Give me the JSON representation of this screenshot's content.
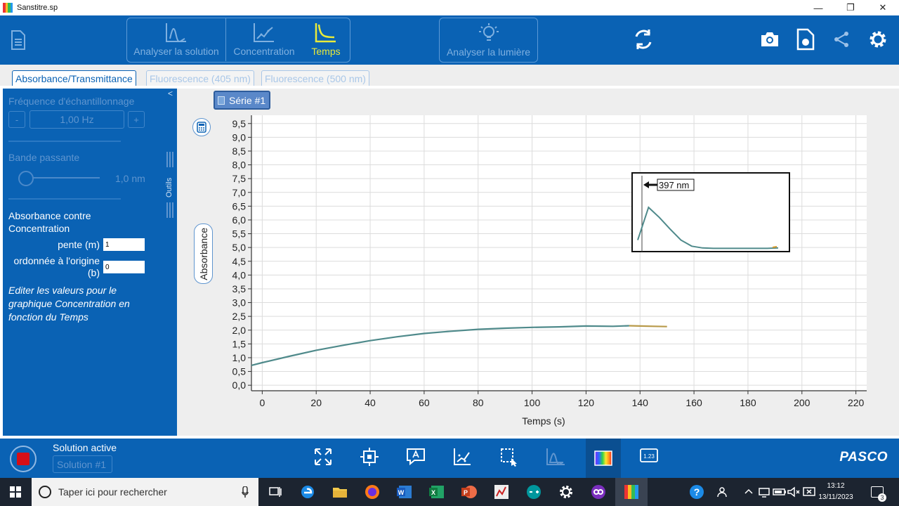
{
  "window": {
    "title": "Sanstitre.sp",
    "minimize": "—",
    "maximize": "❐",
    "close": "✕"
  },
  "toolbar": {
    "modes": [
      {
        "label": "Analyser la solution",
        "icon": "analyze-chart-icon",
        "active": false
      },
      {
        "label": "Concentration",
        "icon": "concentration-chart-icon",
        "active": false
      },
      {
        "label": "Temps",
        "icon": "time-chart-icon",
        "active": true
      }
    ],
    "light_label": "Analyser la lumière",
    "colors": {
      "bg": "#0a62b4",
      "active": "#e8ea3a",
      "faded": "#7fb0e0"
    }
  },
  "tabs": [
    {
      "label": "Absorbance/Transmittance",
      "active": true
    },
    {
      "label": "Fluorescence (405 nm)",
      "active": false
    },
    {
      "label": "Fluorescence (500 nm)",
      "active": false
    }
  ],
  "left_panel": {
    "collapse": "<",
    "sampling_label": "Fréquence d'échantillonnage",
    "minus": "-",
    "plus": "+",
    "sampling_value": "1,00 Hz",
    "bandwidth_label": "Bande passante",
    "bandwidth_value": "1,0 nm",
    "tools_label": "Outils",
    "absorb_title": "Absorbance contre Concentration",
    "slope_label": "pente (m)",
    "slope_value": "1",
    "intercept_label": "ordonnée à l'origine (b)",
    "intercept_value": "0",
    "edit_note": "Editer les valeurs pour le graphique Concentration en fonction du Temps"
  },
  "graph": {
    "series_label": "Série #1",
    "ylabel": "Absorbance",
    "xlabel": "Temps (s)",
    "inset_label": "397 nm"
  },
  "chart_data": {
    "type": "line",
    "xlabel": "Temps (s)",
    "ylabel": "Absorbance",
    "xlim": [
      -4,
      224
    ],
    "ylim": [
      -0.2,
      9.8
    ],
    "xticks": [
      0,
      20,
      40,
      60,
      80,
      100,
      120,
      140,
      160,
      180,
      200,
      220
    ],
    "yticks": [
      0.0,
      0.5,
      1.0,
      1.5,
      2.0,
      2.5,
      3.0,
      3.5,
      4.0,
      4.5,
      5.0,
      5.5,
      6.0,
      6.5,
      7.0,
      7.5,
      8.0,
      8.5,
      9.0,
      9.5
    ],
    "ytick_labels": [
      "0,0",
      "0,5",
      "1,0",
      "1,5",
      "2,0",
      "2,5",
      "3,0",
      "3,5",
      "4,0",
      "4,5",
      "5,0",
      "5,5",
      "6,0",
      "6,5",
      "7,0",
      "7,5",
      "8,0",
      "8,5",
      "9,0",
      "9,5"
    ],
    "grid": true,
    "series": [
      {
        "color": "#4f8a8b",
        "x": [
          -4,
          0,
          10,
          20,
          30,
          40,
          50,
          60,
          70,
          80,
          90,
          100,
          110,
          120,
          130,
          136
        ],
        "y": [
          0.72,
          0.82,
          1.05,
          1.27,
          1.45,
          1.62,
          1.76,
          1.88,
          1.96,
          2.03,
          2.07,
          2.1,
          2.12,
          2.15,
          2.14,
          2.16
        ]
      },
      {
        "color": "#b89a4a",
        "x": [
          136,
          140,
          145,
          150
        ],
        "y": [
          2.16,
          2.15,
          2.14,
          2.13
        ]
      }
    ],
    "inset": {
      "label": "397 nm",
      "curve_y": [
        0.2,
        0.95,
        0.72,
        0.45,
        0.2,
        0.06,
        0.02,
        0.01,
        0.01,
        0.01,
        0.01,
        0.01,
        0.01,
        0.02
      ]
    }
  },
  "bottom": {
    "solution_title": "Solution active",
    "solution_value": "Solution #1",
    "brand": "PASCO"
  },
  "taskbar": {
    "search_placeholder": "Taper ici pour rechercher",
    "time": "13:12",
    "date": "13/11/2023",
    "badge": "3"
  }
}
